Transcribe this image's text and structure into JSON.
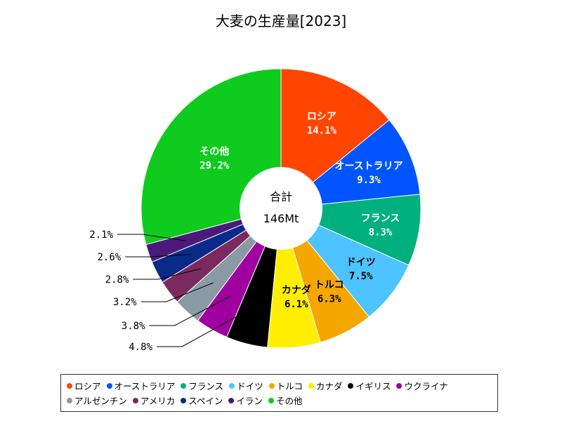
{
  "chart_data": {
    "type": "pie",
    "title": "大麦の生産量[2023]",
    "center_label": "合計",
    "center_value": "146Mt",
    "slices": [
      {
        "name": "ロシア",
        "value": 14.1,
        "label": "14.1%",
        "color": "#ff4500"
      },
      {
        "name": "オーストラリア",
        "value": 9.3,
        "label": "9.3%",
        "color": "#0055ff"
      },
      {
        "name": "フランス",
        "value": 8.3,
        "label": "8.3%",
        "color": "#00b07d"
      },
      {
        "name": "ドイツ",
        "value": 7.5,
        "label": "7.5%",
        "color": "#4dc3ff"
      },
      {
        "name": "トルコ",
        "value": 6.3,
        "label": "6.3%",
        "color": "#f5a700"
      },
      {
        "name": "カナダ",
        "value": 6.1,
        "label": "6.1%",
        "color": "#ffee00"
      },
      {
        "name": "イギリス",
        "value": 4.8,
        "label": "4.8%",
        "color": "#000000"
      },
      {
        "name": "ウクライナ",
        "value": 3.8,
        "label": "3.8%",
        "color": "#a000a0"
      },
      {
        "name": "アルゼンチン",
        "value": 3.2,
        "label": "3.2%",
        "color": "#8a9aa4"
      },
      {
        "name": "アメリカ",
        "value": 2.8,
        "label": "2.8%",
        "color": "#7b2a60"
      },
      {
        "name": "スペイン",
        "value": 2.6,
        "label": "2.6%",
        "color": "#0a2a8a"
      },
      {
        "name": "イラン",
        "value": 2.1,
        "label": "2.1%",
        "color": "#4a1a7a"
      },
      {
        "name": "その他",
        "value": 29.2,
        "label": "29.2%",
        "color": "#0fcb1e"
      }
    ]
  }
}
